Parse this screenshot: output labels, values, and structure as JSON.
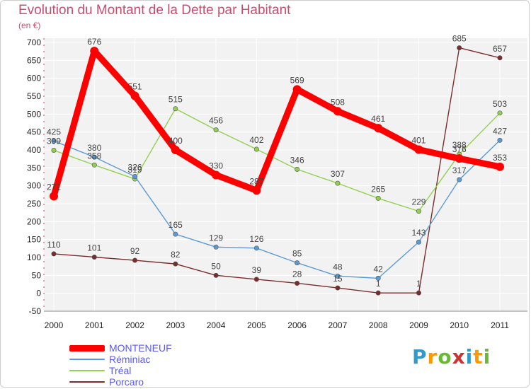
{
  "chart_data": {
    "type": "line",
    "title": "Evolution du Montant de la Dette par Habitant",
    "subtitle": "(en €)",
    "xlabel": "",
    "ylabel": "",
    "categories": [
      "2000",
      "2001",
      "2002",
      "2003",
      "2004",
      "2005",
      "2006",
      "2007",
      "2008",
      "2009",
      "2010",
      "2011"
    ],
    "ylim": [
      -50,
      700
    ],
    "yticks": [
      -50,
      0,
      50,
      100,
      150,
      200,
      250,
      300,
      350,
      400,
      450,
      500,
      550,
      600,
      650,
      700
    ],
    "grid": true,
    "legend_position": "bottom-left",
    "series": [
      {
        "name": "MONTENEUF",
        "color": "#ff0000",
        "values": [
          271,
          676,
          551,
          400,
          330,
          287,
          569,
          508,
          461,
          401,
          376,
          353
        ],
        "labels": [
          "271",
          "676",
          "551",
          "400",
          "330",
          "287",
          "569",
          "508",
          "461",
          "401",
          "376",
          "353"
        ]
      },
      {
        "name": "Réminiac",
        "color": "#5b9bd5",
        "values": [
          425,
          380,
          326,
          165,
          129,
          126,
          85,
          48,
          42,
          143,
          317,
          427
        ],
        "labels": [
          "425",
          "380",
          "326",
          "165",
          "129",
          "126",
          "85",
          "48",
          "42",
          "143",
          "317",
          "427"
        ]
      },
      {
        "name": "Tréal",
        "color": "#92d050",
        "values": [
          399,
          358,
          319,
          515,
          456,
          402,
          346,
          307,
          265,
          229,
          388,
          503
        ],
        "labels": [
          "399",
          "358",
          "319",
          "515",
          "456",
          "402",
          "346",
          "307",
          "265",
          "229",
          "388",
          "503"
        ]
      },
      {
        "name": "Porcaro",
        "color": "#7b2c2c",
        "values": [
          110,
          101,
          92,
          82,
          50,
          39,
          28,
          15,
          1,
          1,
          685,
          657
        ],
        "labels": [
          "110",
          "101",
          "92",
          "82",
          "50",
          "39",
          "28",
          "15",
          "1",
          "1",
          "685",
          "657"
        ]
      }
    ]
  },
  "legend": {
    "items": [
      {
        "label": "MONTENEUF",
        "color": "#ff0000",
        "text_color": "#5a5af0"
      },
      {
        "label": "Réminiac",
        "color": "#5b9bd5",
        "text_color": "#5a5af0"
      },
      {
        "label": "Tréal",
        "color": "#92d050",
        "text_color": "#5a5af0"
      },
      {
        "label": "Porcaro",
        "color": "#7b2c2c",
        "text_color": "#5a5af0"
      }
    ]
  },
  "logo": {
    "letters": [
      "P",
      "r",
      "o",
      "x",
      "i",
      "t",
      "i"
    ],
    "colors": [
      "#3399cc",
      "#ff9900",
      "#66bb33",
      "#cc3333",
      "#3399cc",
      "#ff9900",
      "#66bb33"
    ]
  }
}
